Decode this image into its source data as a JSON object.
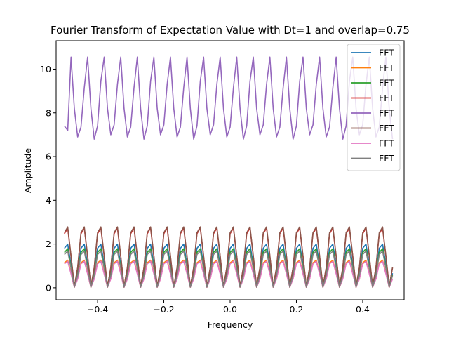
{
  "chart_data": {
    "type": "line",
    "title": "Fourier Transform of Expectation Value with Dt=1 and overlap=0.75",
    "xlabel": "Frequency",
    "ylabel": "Amplitude",
    "xlim": [
      -0.525,
      0.525
    ],
    "ylim": [
      -0.55,
      11.3
    ],
    "x_ticks": [
      -0.4,
      -0.2,
      0.0,
      0.2,
      0.4
    ],
    "x_tick_labels": [
      "−0.4",
      "−0.2",
      "0.0",
      "0.2",
      "0.4"
    ],
    "y_ticks": [
      0,
      2,
      4,
      6,
      8,
      10
    ],
    "y_tick_labels": [
      "0",
      "2",
      "4",
      "6",
      "8",
      "10"
    ],
    "grid": false,
    "legend": "top-right",
    "x_start": -0.5,
    "x_step": 0.01,
    "x_count": 100,
    "series": [
      {
        "name": "FFT",
        "color": "#1f77b4",
        "pattern": [
          1.95,
          2.05,
          1.3,
          0.2,
          0.6,
          1.9
        ],
        "base_amp": 1.9
      },
      {
        "name": "FFT",
        "color": "#ff7f0e",
        "pattern": [
          1.2,
          1.3,
          0.8,
          0.1,
          0.4,
          1.2
        ],
        "base_amp": 1.2
      },
      {
        "name": "FFT",
        "color": "#2ca02c",
        "pattern": [
          1.7,
          1.85,
          1.1,
          0.1,
          0.5,
          1.7
        ],
        "base_amp": 1.7
      },
      {
        "name": "FFT",
        "color": "#d62728",
        "pattern": [
          2.6,
          3.15,
          2.0,
          0.3,
          1.0,
          2.6
        ],
        "base_amp": 2.6
      },
      {
        "name": "FFT",
        "color": "#9467bd",
        "pattern": [
          7.4,
          7.2,
          9.2,
          10.55,
          10.4,
          8.2,
          6.85
        ],
        "period": "custom"
      },
      {
        "name": "FFT",
        "color": "#8c564b",
        "pattern": [
          2.65,
          3.2,
          2.1,
          0.3,
          1.0,
          2.65
        ],
        "base_amp": 2.65
      },
      {
        "name": "FFT",
        "color": "#e377c2",
        "pattern": [
          1.15,
          1.3,
          0.75,
          0.05,
          0.35,
          1.15
        ],
        "base_amp": 1.15
      },
      {
        "name": "FFT",
        "color": "#7f7f7f",
        "pattern": [
          1.6,
          2.1,
          1.2,
          0.05,
          0.4,
          1.6
        ],
        "base_amp": 1.6
      }
    ]
  }
}
